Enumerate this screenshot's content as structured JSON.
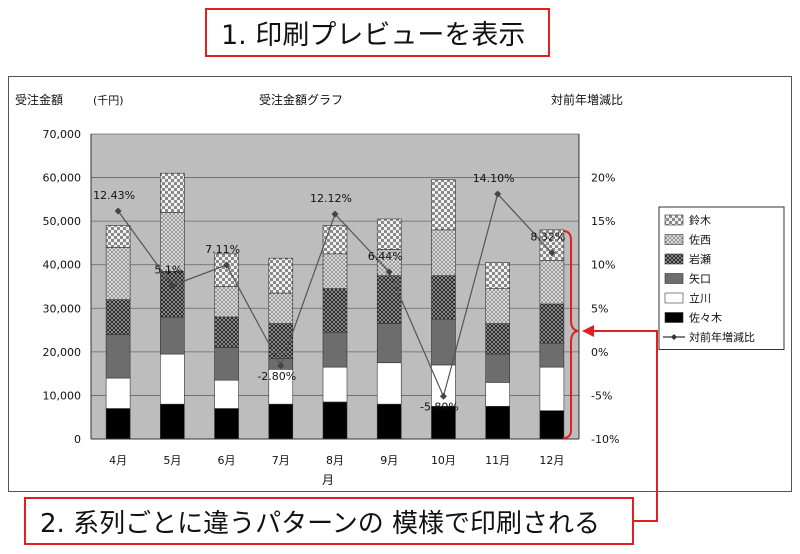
{
  "callouts": {
    "step1": "1. 印刷プレビューを表示",
    "step2": "2. 系列ごとに違うパターンの 模様で印刷される"
  },
  "colors": {
    "callout_border": "#e02020",
    "plot_bg": "#bdbdbd",
    "line": "#555555"
  },
  "chart_data": {
    "type": "bar",
    "stacked": true,
    "title": "受注金額グラフ",
    "ylabel": "受注金額",
    "ylabel_unit": "(千円)",
    "y2label": "対前年増減比",
    "xlabel": "月",
    "ylim": [
      0,
      70000
    ],
    "y2lim": [
      -10,
      20
    ],
    "yticks": [
      "0",
      "10,000",
      "20,000",
      "30,000",
      "40,000",
      "50,000",
      "60,000",
      "70,000"
    ],
    "y2ticks": [
      "-10%",
      "-5%",
      "0%",
      "5%",
      "10%",
      "15%",
      "20%"
    ],
    "grid": true,
    "legend_position": "right",
    "categories": [
      "4月",
      "5月",
      "6月",
      "7月",
      "8月",
      "9月",
      "10月",
      "11月",
      "12月"
    ],
    "series": [
      {
        "name": "佐々木",
        "pattern": "solid-black",
        "values": [
          7000,
          8000,
          7000,
          8000,
          8500,
          8000,
          7500,
          7500,
          6500
        ]
      },
      {
        "name": "立川",
        "pattern": "white",
        "values": [
          7000,
          11500,
          6500,
          8000,
          8000,
          9500,
          9500,
          5500,
          10000
        ]
      },
      {
        "name": "矢口",
        "pattern": "dark-gray",
        "values": [
          10000,
          8500,
          7500,
          2500,
          8000,
          9000,
          10500,
          6500,
          5500
        ]
      },
      {
        "name": "岩瀬",
        "pattern": "dark-check",
        "values": [
          8000,
          10500,
          7000,
          8000,
          10000,
          11000,
          10000,
          7000,
          9000
        ]
      },
      {
        "name": "佐西",
        "pattern": "fine-dots",
        "values": [
          12000,
          13500,
          7000,
          7000,
          8000,
          6000,
          10500,
          8000,
          10000
        ]
      },
      {
        "name": "鈴木",
        "pattern": "coarse-check",
        "values": [
          5000,
          9000,
          7500,
          8000,
          6500,
          7000,
          11500,
          6000,
          7000
        ]
      }
    ],
    "line_series": {
      "name": "対前年増減比",
      "values": [
        12.43,
        5.1,
        7.11,
        -2.8,
        12.12,
        6.44,
        -5.8,
        14.1,
        8.32
      ],
      "labels": [
        "12.43%",
        "5.1%",
        "7.11%",
        "-2.80%",
        "12.12%",
        "6.44%",
        "-5.80%",
        "14.10%",
        "8.32%"
      ]
    }
  }
}
